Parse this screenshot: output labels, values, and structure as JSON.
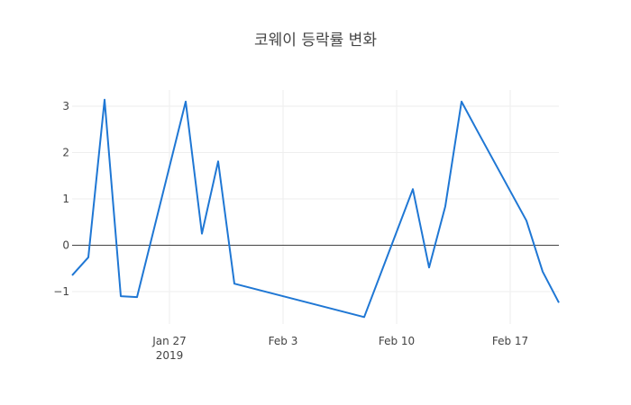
{
  "chart_data": {
    "type": "line",
    "title": "코웨이 등락률 변화",
    "xlabel": "",
    "ylabel": "",
    "x": [
      "2019-01-21",
      "2019-01-22",
      "2019-01-23",
      "2019-01-24",
      "2019-01-25",
      "2019-01-28",
      "2019-01-29",
      "2019-01-30",
      "2019-01-31",
      "2019-02-01",
      "2019-02-07",
      "2019-02-08",
      "2019-02-11",
      "2019-02-12",
      "2019-02-13",
      "2019-02-14",
      "2019-02-15",
      "2019-02-18",
      "2019-02-19",
      "2019-02-20"
    ],
    "series": [
      {
        "color": "#1f77d4",
        "values": [
          -0.65,
          -0.26,
          3.14,
          -1.1,
          -1.12,
          3.1,
          0.25,
          1.81,
          -0.83,
          null,
          null,
          -1.55,
          1.21,
          -0.48,
          0.84,
          3.1,
          2.45,
          0.53,
          -0.57,
          -1.24
        ]
      }
    ],
    "xlim": [
      "2019-01-21",
      "2019-02-20"
    ],
    "ylim": [
      -1.7,
      3.35
    ],
    "x_ticks": [
      {
        "date": "2019-01-27",
        "label": "Jan 27",
        "sublabel": "2019"
      },
      {
        "date": "2019-02-03",
        "label": "Feb 3",
        "sublabel": ""
      },
      {
        "date": "2019-02-10",
        "label": "Feb 10",
        "sublabel": ""
      },
      {
        "date": "2019-02-17",
        "label": "Feb 17",
        "sublabel": ""
      }
    ],
    "y_ticks": [
      {
        "value": -1,
        "label": "−1"
      },
      {
        "value": 0,
        "label": "0"
      },
      {
        "value": 1,
        "label": "1"
      },
      {
        "value": 2,
        "label": "2"
      },
      {
        "value": 3,
        "label": "3"
      }
    ],
    "grid": true,
    "legend": "none"
  }
}
